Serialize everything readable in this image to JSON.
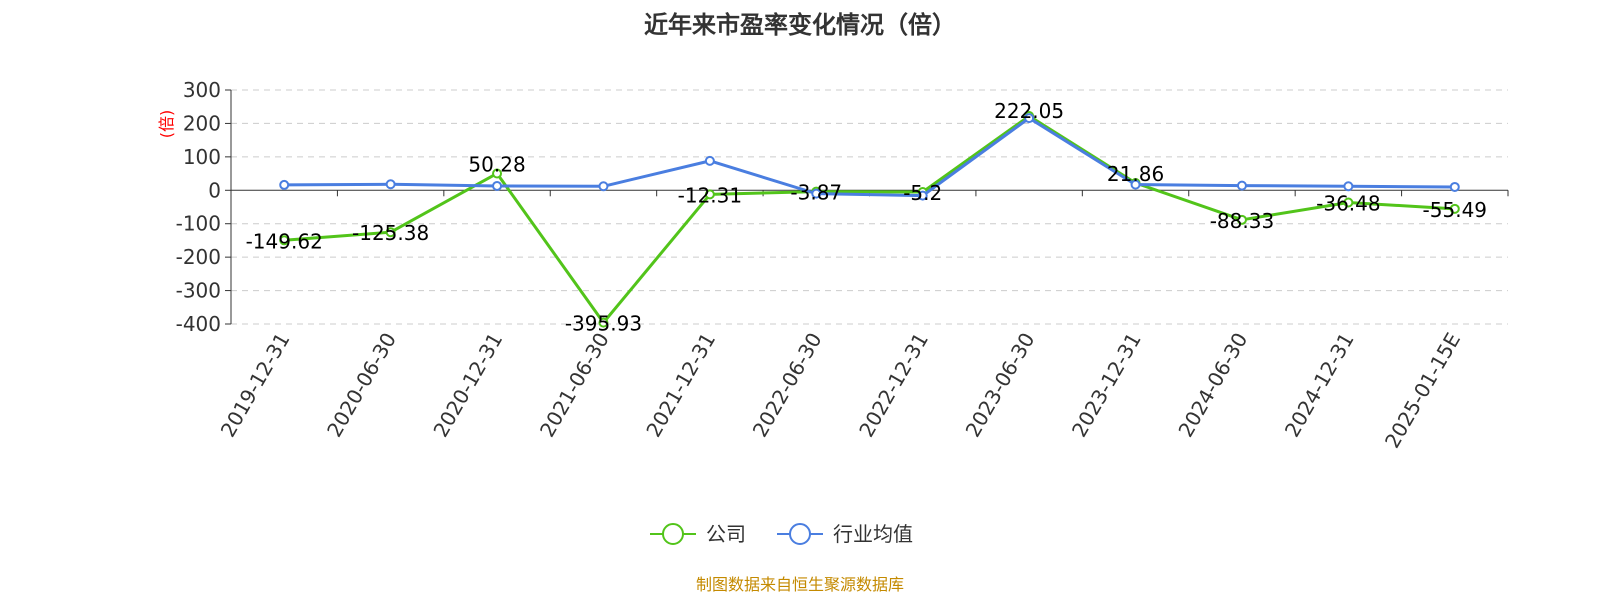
{
  "chart_data": {
    "type": "line",
    "title": "近年来市盈率变化情况（倍）",
    "ylabel": "(倍)",
    "xlabel": "",
    "ylim": [
      -400,
      300
    ],
    "yticks": [
      300,
      200,
      100,
      0,
      -100,
      -200,
      -300,
      -400
    ],
    "categories": [
      "2019-12-31",
      "2020-06-30",
      "2020-12-31",
      "2021-06-30",
      "2021-12-31",
      "2022-06-30",
      "2022-12-31",
      "2023-06-30",
      "2023-12-31",
      "2024-06-30",
      "2024-12-31",
      "2025-01-15E"
    ],
    "series": [
      {
        "name": "公司",
        "color": "#52c41a",
        "values": [
          -149.62,
          -125.38,
          50.28,
          -395.93,
          -12.31,
          -3.87,
          -5.2,
          222.05,
          21.86,
          -88.33,
          -36.48,
          -55.49
        ],
        "labels": [
          "-149.62",
          "-125.38",
          "50.28",
          "-395.93",
          "-12.31",
          "-3.87",
          "-5.2",
          "222.05",
          "21.86",
          "-88.33",
          "-36.48",
          "-55.49"
        ]
      },
      {
        "name": "行业均值",
        "color": "#4a7ee0",
        "values": [
          16,
          18,
          13,
          12,
          88,
          -10,
          -16,
          216,
          17,
          14,
          12,
          10
        ]
      }
    ],
    "legend_position": "bottom-center",
    "grid": true
  },
  "source_note": "制图数据来自恒生聚源数据库"
}
